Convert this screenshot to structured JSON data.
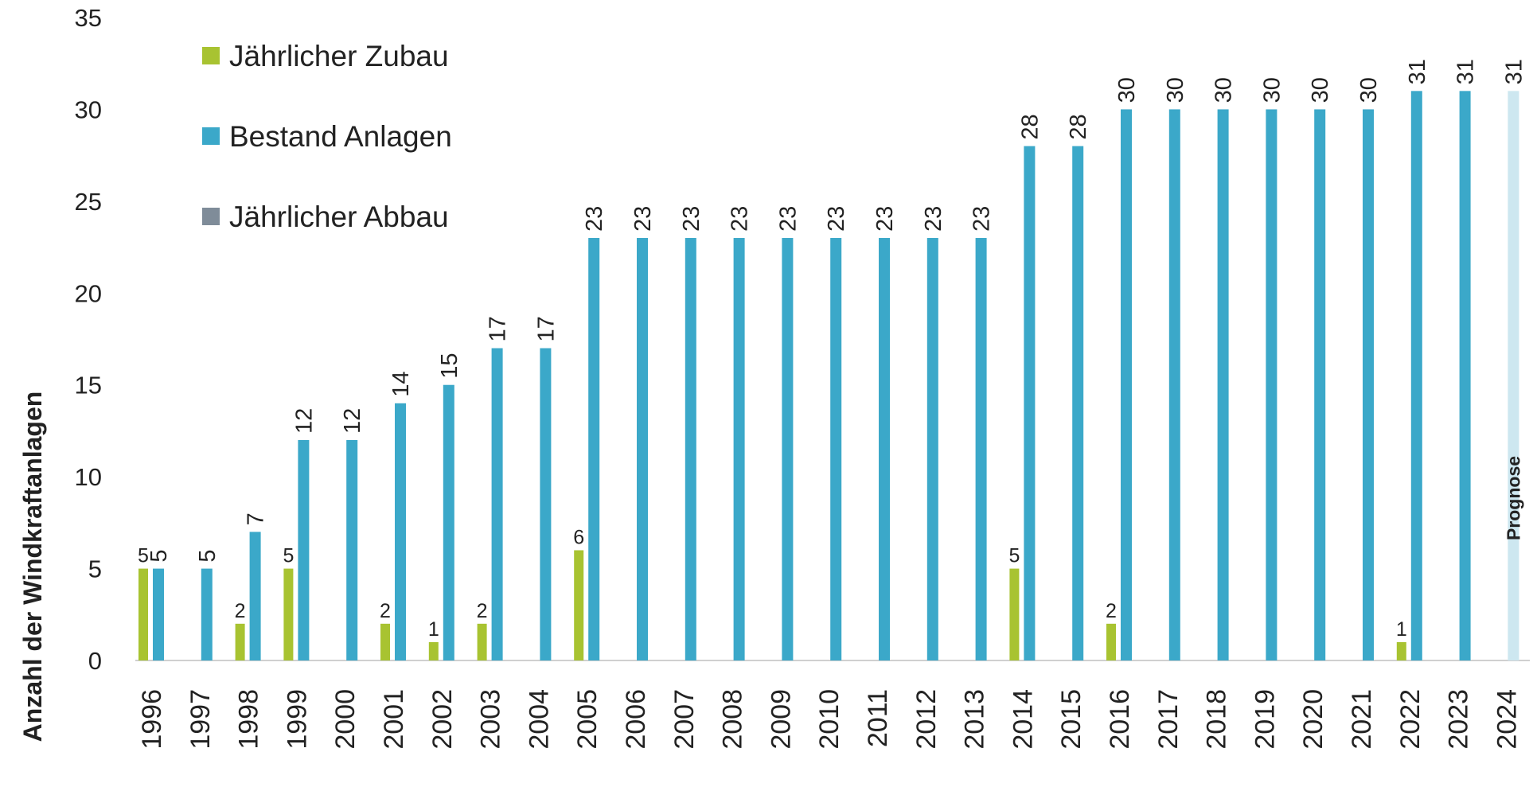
{
  "chart_data": {
    "type": "bar",
    "y_label": "Anzahl der Windkraftanlagen",
    "categories": [
      "1996",
      "1997",
      "1998",
      "1999",
      "2000",
      "2001",
      "2002",
      "2003",
      "2004",
      "2005",
      "2006",
      "2007",
      "2008",
      "2009",
      "2010",
      "2011",
      "2012",
      "2013",
      "2014",
      "2015",
      "2016",
      "2017",
      "2018",
      "2019",
      "2020",
      "2021",
      "2022",
      "2023",
      "2024"
    ],
    "series": [
      {
        "name": "Jährlicher Zubau",
        "color": "#a8c331",
        "values": [
          5,
          null,
          2,
          5,
          null,
          2,
          1,
          2,
          null,
          6,
          null,
          null,
          null,
          null,
          null,
          null,
          null,
          null,
          5,
          null,
          2,
          null,
          null,
          null,
          null,
          null,
          1,
          null,
          null
        ]
      },
      {
        "name": "Bestand Anlagen",
        "color": "#3ba8c9",
        "point_colors": [
          "#3ba8c9",
          "#3ba8c9",
          "#3ba8c9",
          "#3ba8c9",
          "#3ba8c9",
          "#3ba8c9",
          "#3ba8c9",
          "#3ba8c9",
          "#3ba8c9",
          "#3ba8c9",
          "#3ba8c9",
          "#3ba8c9",
          "#3ba8c9",
          "#3ba8c9",
          "#3ba8c9",
          "#3ba8c9",
          "#3ba8c9",
          "#3ba8c9",
          "#3ba8c9",
          "#3ba8c9",
          "#3ba8c9",
          "#3ba8c9",
          "#3ba8c9",
          "#3ba8c9",
          "#3ba8c9",
          "#3ba8c9",
          "#3ba8c9",
          "#3ba8c9",
          "#cde7f0"
        ],
        "values": [
          5,
          5,
          7,
          12,
          12,
          14,
          15,
          17,
          17,
          23,
          23,
          23,
          23,
          23,
          23,
          23,
          23,
          23,
          28,
          28,
          30,
          30,
          30,
          30,
          30,
          30,
          31,
          31,
          31
        ]
      },
      {
        "name": "Jährlicher Abbau",
        "color": "#7f8c99",
        "values": [
          null,
          null,
          null,
          null,
          null,
          null,
          null,
          null,
          null,
          null,
          null,
          null,
          null,
          null,
          null,
          null,
          null,
          null,
          null,
          null,
          null,
          null,
          null,
          null,
          null,
          null,
          null,
          null,
          null
        ]
      }
    ],
    "annotation": {
      "text": "Prognose",
      "category": "2024",
      "color": "#7f8c99"
    },
    "ylim": [
      0,
      35
    ],
    "yticks": [
      0,
      5,
      10,
      15,
      20,
      25,
      30,
      35
    ]
  }
}
